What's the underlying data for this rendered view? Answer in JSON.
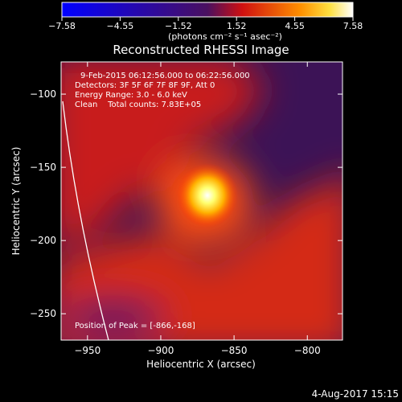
{
  "chart_data": {
    "type": "heatmap",
    "title": "Reconstructed RHESSI Image",
    "xlabel": "Heliocentric X (arcsec)",
    "ylabel": "Heliocentric Y (arcsec)",
    "xlim": [
      -968,
      -776
    ],
    "ylim": [
      -268,
      -78
    ],
    "xticks": [
      -950,
      -900,
      -850,
      -800
    ],
    "yticks": [
      -100,
      -150,
      -200,
      -250
    ],
    "colorbar": {
      "ticks": [
        "-7.58",
        "-4.55",
        "-1.52",
        "1.52",
        "4.55",
        "7.58"
      ],
      "range": [
        -7.58,
        7.58
      ],
      "unit_label": "(photons cm⁻² s⁻¹ asec⁻²)",
      "colormap": "blue-purple-red-yellow-white"
    },
    "info_lines": [
      "9-Feb-2015 06:12:56.000 to 06:22:56.000",
      "Detectors: 3F 5F 6F 7F 8F 9F, Att 0",
      "Energy Range: 3.0 - 6.0 keV",
      "Clean    Total counts: 7.83E+05"
    ],
    "peak_label": "Position of Peak = [-866,-168]",
    "peak": {
      "x": -866,
      "y": -168
    },
    "timestamp": "4-Aug-2017 15:15"
  }
}
